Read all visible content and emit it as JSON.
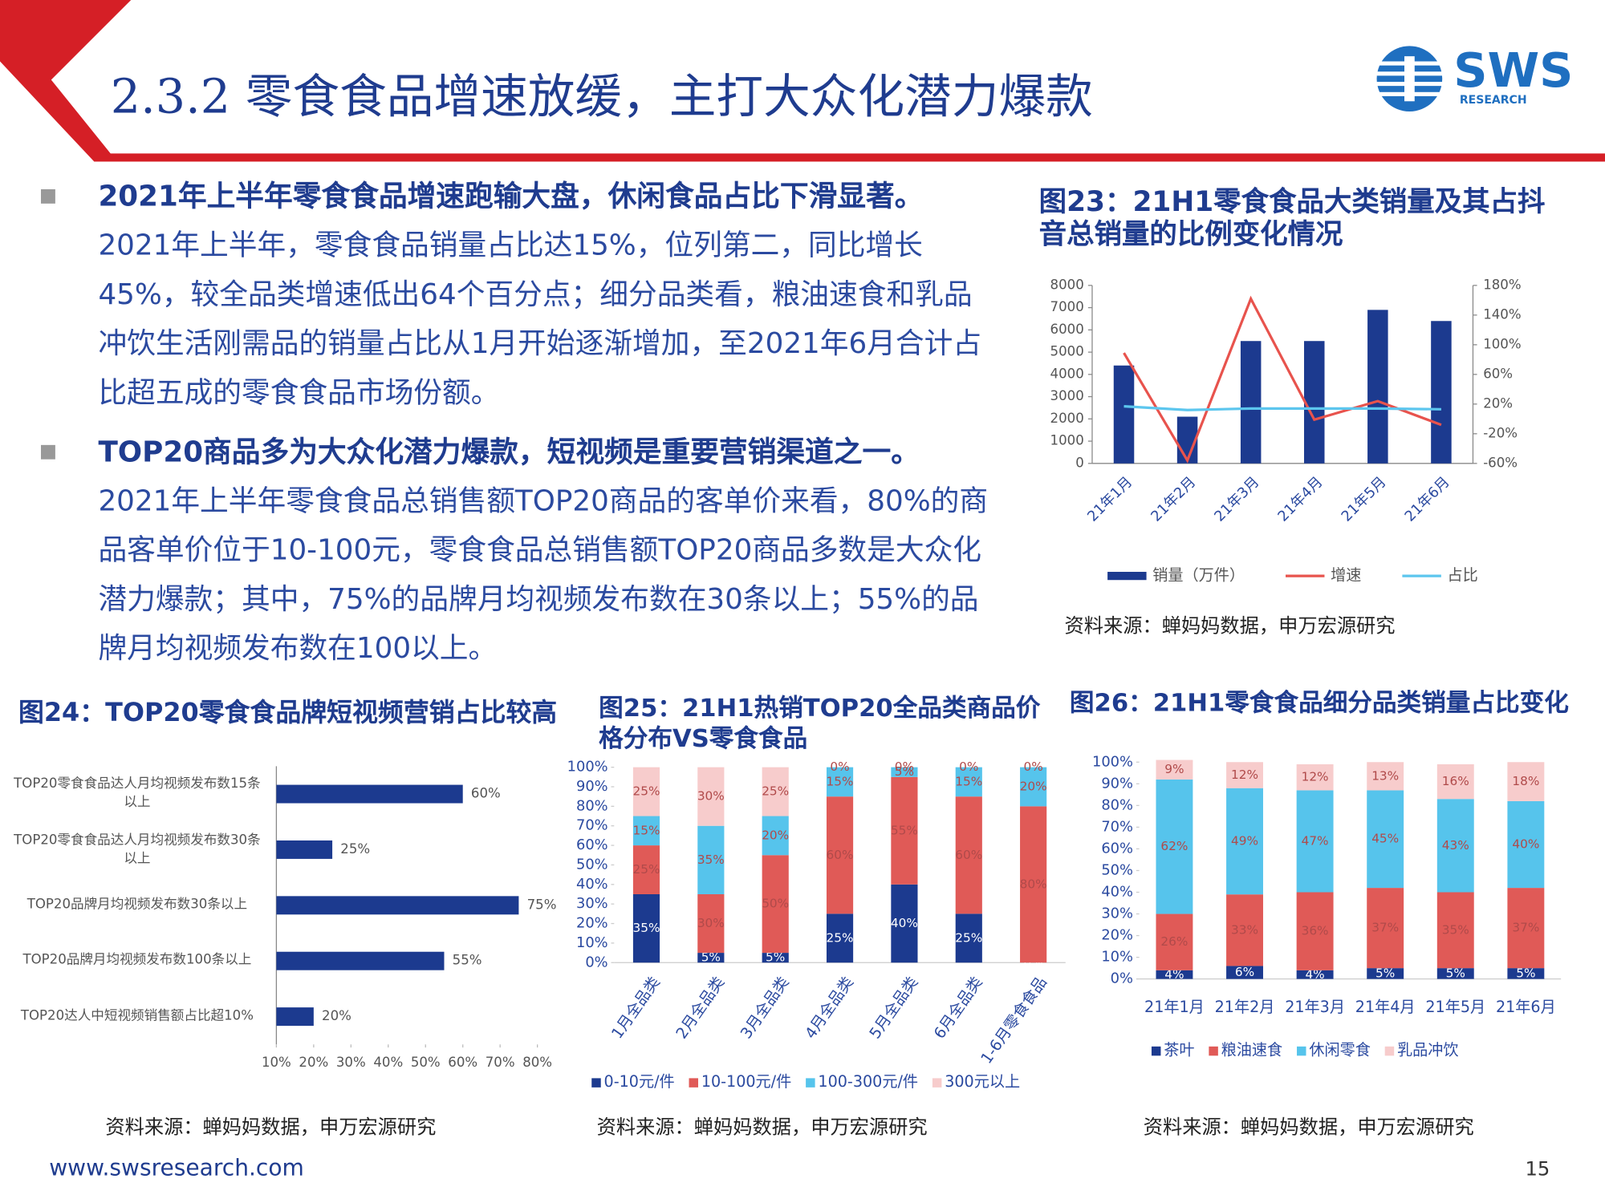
{
  "header": {
    "title": "2.3.2 零食食品增速放缓，主打大众化潜力爆款",
    "logo": "SWS",
    "logo_sub": "RESEARCH"
  },
  "bullets": [
    {
      "title": "2021年上半年零食食品增速跑输大盘，休闲食品占比下滑显著。",
      "body": "2021年上半年，零食食品销量占比达15%，位列第二，同比增长45%，较全品类增速低出64个百分点；细分品类看，粮油速食和乳品冲饮生活刚需品的销量占比从1月开始逐渐增加，至2021年6月合计占比超五成的零食食品市场份额。"
    },
    {
      "title": "TOP20商品多为大众化潜力爆款，短视频是重要营销渠道之一。",
      "body": "2021年上半年零食食品总销售额TOP20商品的客单价来看，80%的商品客单价位于10-100元，零食食品总销售额TOP20商品多数是大众化潜力爆款；其中，75%的品牌月均视频发布数在30条以上；55%的品牌月均视频发布数在100以上。"
    }
  ],
  "chart_data": [
    {
      "type": "combo",
      "title": "图23：21H1零食食品大类销量及其占抖音总销量的比例变化情况",
      "categories": [
        "21年1月",
        "21年2月",
        "21年3月",
        "21年4月",
        "21年5月",
        "21年6月"
      ],
      "series": [
        {
          "name": "销量（万件）",
          "type": "bar",
          "color": "#1c3a8f",
          "values": [
            4400,
            2100,
            5500,
            5500,
            6900,
            6400
          ]
        },
        {
          "name": "增速",
          "type": "line",
          "axis": "y2",
          "color": "#e8534d",
          "values": [
            89,
            -56,
            162,
            -1,
            24,
            -8
          ]
        },
        {
          "name": "占比",
          "type": "line",
          "axis": "y2",
          "color": "#5cc6ee",
          "values": [
            17,
            12,
            14,
            14,
            14,
            13
          ]
        }
      ],
      "ylim": [
        0,
        8000
      ],
      "yticks": [
        0,
        1000,
        2000,
        3000,
        4000,
        5000,
        6000,
        7000,
        8000
      ],
      "y2lim": [
        -60,
        180
      ],
      "y2ticks": [
        {
          "value": -60,
          "label": "-60%"
        },
        {
          "value": -20,
          "label": "-20%"
        },
        {
          "value": 20,
          "label": "20%"
        },
        {
          "value": 60,
          "label": "60%"
        },
        {
          "value": 100,
          "label": "100%"
        },
        {
          "value": 140,
          "label": "140%"
        },
        {
          "value": 180,
          "label": "180%"
        }
      ],
      "legend": "bottom",
      "source": "资料来源：蝉妈妈数据，申万宏源研究"
    },
    {
      "type": "hbar",
      "title": "图24：TOP20零食食品牌短视频营销占比较高",
      "categories": [
        "TOP20零食食品达人月均视频发布数15条以上",
        "TOP20零食食品达人月均视频发布数30条以上",
        "TOP20品牌月均视频发布数30条以上",
        "TOP20品牌月均视频发布数100条以上",
        "TOP20达人中短视频销售额占比超10%"
      ],
      "values": [
        60,
        25,
        75,
        55,
        20
      ],
      "value_labels": [
        "60%",
        "25%",
        "75%",
        "55%",
        "20%"
      ],
      "color": "#1c3a8f",
      "xlim": [
        10,
        80
      ],
      "xticks": [
        {
          "value": 10,
          "label": "10%"
        },
        {
          "value": 20,
          "label": "20%"
        },
        {
          "value": 30,
          "label": "30%"
        },
        {
          "value": 40,
          "label": "40%"
        },
        {
          "value": 50,
          "label": "50%"
        },
        {
          "value": 60,
          "label": "60%"
        },
        {
          "value": 70,
          "label": "70%"
        },
        {
          "value": 80,
          "label": "80%"
        }
      ],
      "source": "资料来源：蝉妈妈数据，申万宏源研究"
    },
    {
      "type": "stacked",
      "title": "图25：21H1热销TOP20全品类商品价格分布VS零食食品",
      "categories": [
        "1月全品类",
        "2月全品类",
        "3月全品类",
        "4月全品类",
        "5月全品类",
        "6月全品类",
        "1-6月零食食品"
      ],
      "series": [
        {
          "name": "0-10元/件",
          "color": "#1c3a8f",
          "values": [
            35,
            5,
            5,
            25,
            40,
            25,
            0
          ],
          "value_labels": [
            "35%",
            "5%",
            "5%",
            "25%",
            "40%",
            "25%",
            "0%"
          ]
        },
        {
          "name": "10-100元/件",
          "color": "#e05a57",
          "values": [
            25,
            30,
            50,
            60,
            55,
            60,
            80
          ],
          "value_labels": [
            "25%",
            "30%",
            "50%",
            "60%",
            "55%",
            "60%",
            "80%"
          ]
        },
        {
          "name": "100-300元/件",
          "color": "#56c4ec",
          "values": [
            15,
            35,
            20,
            15,
            5,
            15,
            20
          ],
          "value_labels": [
            "15%",
            "35%",
            "20%",
            "15%",
            "5%",
            "15%",
            "20%"
          ]
        },
        {
          "name": "300元以上",
          "color": "#f7cccc",
          "values": [
            25,
            30,
            25,
            0,
            0,
            0,
            0
          ],
          "value_labels": [
            "25%",
            "30%",
            "25%",
            "0%",
            "0%",
            "0%",
            "0%"
          ]
        }
      ],
      "ylim": [
        0,
        100
      ],
      "yticks": [
        {
          "value": 0,
          "label": "0%"
        },
        {
          "value": 10,
          "label": "10%"
        },
        {
          "value": 20,
          "label": "20%"
        },
        {
          "value": 30,
          "label": "30%"
        },
        {
          "value": 40,
          "label": "40%"
        },
        {
          "value": 50,
          "label": "50%"
        },
        {
          "value": 60,
          "label": "60%"
        },
        {
          "value": 70,
          "label": "70%"
        },
        {
          "value": 80,
          "label": "80%"
        },
        {
          "value": 90,
          "label": "90%"
        },
        {
          "value": 100,
          "label": "100%"
        }
      ],
      "legend": "bottom",
      "source": "资料来源：蝉妈妈数据，申万宏源研究"
    },
    {
      "type": "stacked",
      "title": "图26：21H1零食食品细分品类销量占比变化",
      "categories": [
        "21年1月",
        "21年2月",
        "21年3月",
        "21年4月",
        "21年5月",
        "21年6月"
      ],
      "series": [
        {
          "name": "茶叶",
          "color": "#1c3a8f",
          "values": [
            4,
            6,
            4,
            5,
            5,
            5
          ],
          "value_labels": [
            "4%",
            "6%",
            "4%",
            "5%",
            "5%",
            "5%"
          ]
        },
        {
          "name": "粮油速食",
          "color": "#e05a57",
          "values": [
            26,
            33,
            36,
            37,
            35,
            37
          ],
          "value_labels": [
            "26%",
            "33%",
            "36%",
            "37%",
            "35%",
            "37%"
          ]
        },
        {
          "name": "休闲零食",
          "color": "#56c4ec",
          "values": [
            62,
            49,
            47,
            45,
            43,
            40
          ],
          "value_labels": [
            "62%",
            "49%",
            "47%",
            "45%",
            "43%",
            "40%"
          ]
        },
        {
          "name": "乳品冲饮",
          "color": "#f7cccc",
          "values": [
            9,
            12,
            12,
            13,
            16,
            18
          ],
          "value_labels": [
            "9%",
            "12%",
            "12%",
            "13%",
            "16%",
            "18%"
          ]
        }
      ],
      "ylim": [
        0,
        100
      ],
      "yticks": [
        {
          "value": 0,
          "label": "0%"
        },
        {
          "value": 10,
          "label": "10%"
        },
        {
          "value": 20,
          "label": "20%"
        },
        {
          "value": 30,
          "label": "30%"
        },
        {
          "value": 40,
          "label": "40%"
        },
        {
          "value": 50,
          "label": "50%"
        },
        {
          "value": 60,
          "label": "60%"
        },
        {
          "value": 70,
          "label": "70%"
        },
        {
          "value": 80,
          "label": "80%"
        },
        {
          "value": 90,
          "label": "90%"
        },
        {
          "value": 100,
          "label": "100%"
        }
      ],
      "legend": "bottom",
      "source": "资料来源：蝉妈妈数据，申万宏源研究"
    }
  ],
  "footer": {
    "url": "www.swsresearch.com",
    "page": "15"
  }
}
